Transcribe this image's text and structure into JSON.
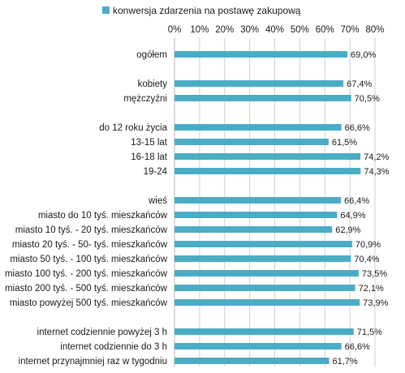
{
  "chart_data": {
    "type": "bar",
    "orientation": "horizontal",
    "legend": {
      "placement": "top",
      "entries": [
        {
          "name": "konwersja zdarzenia na postawę zakupową",
          "color": "#4BACC6"
        }
      ]
    },
    "xlim": [
      0,
      80
    ],
    "xticks": [
      "0%",
      "10%",
      "20%",
      "30%",
      "40%",
      "50%",
      "60%",
      "70%",
      "80%"
    ],
    "grid": true,
    "categories": [
      "ogółem",
      "",
      "kobiety",
      "mężczyźni",
      "",
      "do 12 roku życia",
      "13-15 lat",
      "16-18 lat",
      "19-24",
      "",
      "wieś",
      "miasto do 10 tyś. mieszkańców",
      "miasto 10 tyś. - 20 tyś. mieszkańców",
      "miasto 20 tyś. - 50- tyś. mieszkańców",
      "miasto 50 tyś. - 100 tyś. mieszkańców",
      "miasto 100 tyś. - 200 tyś. mieszkańców",
      "miasto 200 tyś. - 500 tyś. mieszkańców",
      "miasto powyżej 500 tyś. mieszkańców",
      "",
      "internet codziennie powyżej 3 h",
      "internet codziennie do 3 h",
      "internet przynajmniej raz w tygodniu"
    ],
    "series": [
      {
        "name": "konwersja zdarzenia na postawę zakupową",
        "color": "#4BACC6",
        "values": [
          69.0,
          null,
          67.4,
          70.5,
          null,
          66.6,
          61.5,
          74.2,
          74.3,
          null,
          66.4,
          64.9,
          62.9,
          70.9,
          70.4,
          73.5,
          72.1,
          73.9,
          null,
          71.5,
          66.6,
          61.7
        ],
        "labels": [
          "69,0%",
          "",
          "67,4%",
          "70,5%",
          "",
          "66,6%",
          "61,5%",
          "74,2%",
          "74,3%",
          "",
          "66,4%",
          "64,9%",
          "62,9%",
          "70,9%",
          "70,4%",
          "73,5%",
          "72,1%",
          "73,9%",
          "",
          "71,5%",
          "66,6%",
          "61,7%"
        ]
      }
    ]
  }
}
